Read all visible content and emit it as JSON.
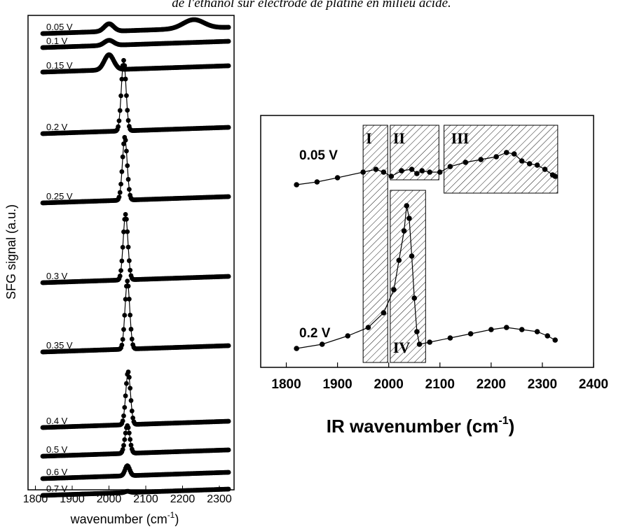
{
  "caption": "de l'éthanol sur électrode de platine en milieu acide.",
  "chart_data": [
    {
      "type": "scatter",
      "stacked_offsets": true,
      "xlabel": "wavenumber (cm",
      "xlabel_sup": "-1",
      "xlabel_close": ")",
      "ylabel": "SFG signal (a.u.)",
      "xlim": [
        1780,
        2340
      ],
      "xticks": [
        "1800",
        "1900",
        "2000",
        "2100",
        "2200",
        "2300"
      ],
      "series": [
        {
          "name": "0.05 V",
          "peak_x": 2000,
          "peak_height": 0.3
        },
        {
          "name": "0.1 V",
          "peak_x": 2000,
          "peak_height": 0.2
        },
        {
          "name": "0.15 V",
          "peak_x": 2000,
          "peak_height": 0.6
        },
        {
          "name": "0.2 V",
          "peak_x": 2040,
          "peak_height": 2.8
        },
        {
          "name": "0.25 V",
          "peak_x": 2043,
          "peak_height": 2.5
        },
        {
          "name": "0.3 V",
          "peak_x": 2045,
          "peak_height": 2.6
        },
        {
          "name": "0.35 V",
          "peak_x": 2050,
          "peak_height": 2.7
        },
        {
          "name": "0.4 V",
          "peak_x": 2052,
          "peak_height": 2.1
        },
        {
          "name": "0.5 V",
          "peak_x": 2050,
          "peak_height": 1.1
        },
        {
          "name": "0.6 V",
          "peak_x": 2050,
          "peak_height": 0.4
        },
        {
          "name": "0.7 V",
          "peak_x": 2050,
          "peak_height": 0.05
        }
      ]
    },
    {
      "type": "scatter",
      "xlabel": "IR wavenumber (cm",
      "xlabel_sup": "-1",
      "xlabel_close": ")",
      "xlim": [
        1750,
        2400
      ],
      "xticks": [
        "1800",
        "1900",
        "2000",
        "2100",
        "2200",
        "2300",
        "2400"
      ],
      "series": [
        {
          "name": "0.05 V",
          "x": [
            1820,
            1860,
            1900,
            1950,
            1975,
            1990,
            2005,
            2025,
            2045,
            2055,
            2065,
            2080,
            2100,
            2120,
            2150,
            2180,
            2210,
            2230,
            2245,
            2260,
            2275,
            2290,
            2305,
            2320,
            2325
          ],
          "y": [
            0.0,
            0.1,
            0.25,
            0.45,
            0.55,
            0.45,
            0.3,
            0.5,
            0.55,
            0.4,
            0.5,
            0.45,
            0.45,
            0.65,
            0.8,
            0.9,
            1.0,
            1.15,
            1.1,
            0.85,
            0.75,
            0.7,
            0.55,
            0.35,
            0.3
          ]
        },
        {
          "name": "0.2 V",
          "x": [
            1820,
            1870,
            1920,
            1960,
            1990,
            2010,
            2020,
            2030,
            2035,
            2040,
            2045,
            2050,
            2055,
            2060,
            2080,
            2120,
            2160,
            2200,
            2230,
            2260,
            2290,
            2310,
            2325
          ],
          "y": [
            0.0,
            0.1,
            0.3,
            0.5,
            0.85,
            1.4,
            2.1,
            2.8,
            3.4,
            3.1,
            2.2,
            1.2,
            0.4,
            0.1,
            0.15,
            0.25,
            0.35,
            0.45,
            0.5,
            0.45,
            0.4,
            0.3,
            0.2
          ]
        }
      ],
      "regions": [
        {
          "label": "I",
          "x": [
            1950,
            1998
          ]
        },
        {
          "label": "II",
          "x": [
            2003,
            2098
          ]
        },
        {
          "label": "III",
          "x": [
            2108,
            2330
          ]
        },
        {
          "label": "IV",
          "x": [
            2003,
            2072
          ]
        }
      ]
    }
  ]
}
